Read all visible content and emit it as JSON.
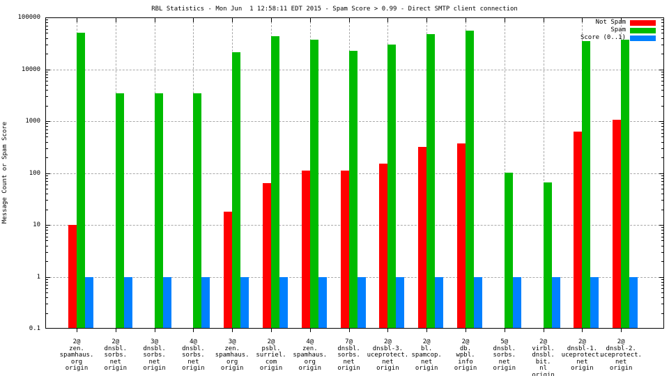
{
  "title": "RBL Statistics - Mon Jun  1 12:58:11 EDT 2015 - Spam Score > 0.99 - Direct SMTP client connection",
  "chart_data": {
    "type": "bar",
    "title": "RBL Statistics - Mon Jun  1 12:58:11 EDT 2015 - Spam Score > 0.99 - Direct SMTP client connection",
    "ylabel": "Message Count or Spam Score",
    "xlabel": "",
    "y_scale": "log",
    "ylim": [
      0.1,
      100000
    ],
    "y_ticks": [
      0.1,
      1,
      10,
      100,
      1000,
      10000,
      100000
    ],
    "y_tick_labels": [
      "0.1",
      "1",
      "10",
      "100",
      "1000",
      "10000",
      "100000"
    ],
    "grid": true,
    "legend_position": "top-right-inside",
    "categories": [
      [
        "2@",
        "zen.",
        "spamhaus.",
        "org",
        "origin"
      ],
      [
        "2@",
        "dnsbl.",
        "sorbs.",
        "net",
        "origin"
      ],
      [
        "3@",
        "dnsbl.",
        "sorbs.",
        "net",
        "origin"
      ],
      [
        "4@",
        "dnsbl.",
        "sorbs.",
        "net",
        "origin"
      ],
      [
        "3@",
        "zen.",
        "spamhaus.",
        "org",
        "origin"
      ],
      [
        "2@",
        "psbl.",
        "surriel.",
        "com",
        "origin"
      ],
      [
        "4@",
        "zen.",
        "spamhaus.",
        "org",
        "origin"
      ],
      [
        "7@",
        "dnsbl.",
        "sorbs.",
        "net",
        "origin"
      ],
      [
        "2@",
        "dnsbl-3.",
        "uceprotect.",
        "net",
        "origin"
      ],
      [
        "2@",
        "bl.",
        "spamcop.",
        "net",
        "origin"
      ],
      [
        "2@",
        "db.",
        "wpbl.",
        "info",
        "origin"
      ],
      [
        "5@",
        "dnsbl.",
        "sorbs.",
        "net",
        "origin"
      ],
      [
        "2@",
        "virbl.",
        "dnsbl.",
        "bit.",
        "nl",
        "origin"
      ],
      [
        "2@",
        "dnsbl-1.",
        "uceprotect.",
        "net",
        "origin"
      ],
      [
        "2@",
        "dnsbl-2.",
        "uceprotect.",
        "net",
        "origin"
      ]
    ],
    "series": [
      {
        "name": "Not Spam",
        "color": "#ff0000",
        "values": [
          10,
          null,
          null,
          null,
          18,
          63,
          110,
          110,
          150,
          320,
          370,
          null,
          null,
          620,
          1050
        ]
      },
      {
        "name": "Spam",
        "color": "#00bb00",
        "values": [
          50000,
          3400,
          3400,
          3400,
          21000,
          43000,
          37000,
          23000,
          30000,
          47000,
          55000,
          103,
          65,
          35000,
          37000
        ]
      },
      {
        "name": "Score (0..1)",
        "color": "#0080ff",
        "values": [
          1,
          1,
          1,
          1,
          1,
          1,
          1,
          1,
          1,
          1,
          1,
          1,
          1,
          1,
          1
        ]
      }
    ],
    "colors": {
      "not_spam": "#ff0000",
      "spam": "#00bb00",
      "score": "#0080ff",
      "grid": "#a8a8a8",
      "axis": "#000000"
    }
  }
}
